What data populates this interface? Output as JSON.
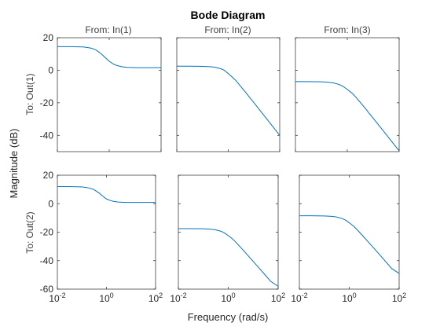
{
  "chart_data": {
    "type": "line",
    "title": "Bode Diagram",
    "xlabel": "Frequency (rad/s)",
    "ylabel": "Magnitude (dB)",
    "x_scale": "log",
    "xlim": [
      0.01,
      100
    ],
    "grid": false,
    "inputs": [
      "From: In(1)",
      "From: In(2)",
      "From: In(3)"
    ],
    "outputs": [
      "To: Out(1)",
      "To: Out(2)"
    ],
    "x_tick_labels": [
      {
        "base": "10",
        "exp": "-2"
      },
      {
        "base": "10",
        "exp": "0"
      },
      {
        "base": "10",
        "exp": "2"
      }
    ],
    "rows": [
      {
        "ylim": [
          -50,
          20
        ],
        "yticks": [
          20,
          0,
          -20,
          -40
        ],
        "panels": [
          {
            "x": [
              0.01,
              0.03,
              0.1,
              0.2,
              0.3,
              0.5,
              0.7,
              1,
              1.5,
              2,
              3,
              5,
              7,
              10,
              20,
              30,
              50,
              100
            ],
            "y": [
              14.5,
              14.5,
              14.3,
              13.6,
              12.6,
              10,
              7.8,
              5.5,
              3.7,
              2.9,
              2.2,
              1.8,
              1.7,
              1.6,
              1.6,
              1.6,
              1.6,
              1.6
            ]
          },
          {
            "x": [
              0.01,
              0.03,
              0.1,
              0.2,
              0.3,
              0.5,
              0.7,
              1,
              1.5,
              2,
              3,
              5,
              7,
              10,
              20,
              30,
              50,
              100
            ],
            "y": [
              2.5,
              2.5,
              2.4,
              2.2,
              1.9,
              1,
              0,
              -2,
              -4.5,
              -6.4,
              -9.8,
              -14,
              -17,
              -20,
              -26,
              -29.5,
              -34,
              -40
            ]
          },
          {
            "x": [
              0.01,
              0.03,
              0.1,
              0.2,
              0.3,
              0.5,
              0.7,
              1,
              1.5,
              2,
              3,
              5,
              7,
              10,
              20,
              30,
              50,
              100
            ],
            "y": [
              -7,
              -7,
              -7.1,
              -7.4,
              -7.8,
              -8.8,
              -10,
              -11.8,
              -14,
              -16,
              -19.3,
              -23.5,
              -26.5,
              -29.5,
              -35.5,
              -39,
              -43.5,
              -49.5
            ]
          }
        ]
      },
      {
        "ylim": [
          -60,
          20
        ],
        "yticks": [
          20,
          0,
          -20,
          -40,
          -60
        ],
        "panels": [
          {
            "x": [
              0.01,
              0.03,
              0.1,
              0.2,
              0.3,
              0.5,
              0.7,
              1,
              1.5,
              2,
              3,
              5,
              7,
              10,
              20,
              30,
              50,
              100
            ],
            "y": [
              12,
              12,
              11.8,
              11,
              10,
              7.5,
              5.3,
              3.3,
              2.1,
              1.6,
              1.2,
              1,
              0.9,
              0.9,
              0.9,
              0.9,
              0.9,
              0.9
            ]
          },
          {
            "x": [
              0.01,
              0.03,
              0.1,
              0.2,
              0.3,
              0.5,
              0.7,
              1,
              1.5,
              2,
              3,
              5,
              7,
              10,
              20,
              30,
              50,
              100
            ],
            "y": [
              -17.5,
              -17.5,
              -17.6,
              -17.9,
              -18.3,
              -19.3,
              -20.5,
              -22.4,
              -24.8,
              -27,
              -30.3,
              -34.6,
              -37.5,
              -40.5,
              -46.5,
              -50,
              -54.5,
              -58
            ]
          },
          {
            "x": [
              0.01,
              0.03,
              0.1,
              0.2,
              0.3,
              0.5,
              0.7,
              1,
              1.5,
              2,
              3,
              5,
              7,
              10,
              20,
              30,
              50,
              100
            ],
            "y": [
              -8.5,
              -8.5,
              -8.6,
              -8.9,
              -9.3,
              -10.3,
              -11.5,
              -13.4,
              -15.8,
              -18,
              -21.3,
              -25.6,
              -28.5,
              -31.5,
              -37.5,
              -41,
              -45.5,
              -49
            ]
          }
        ]
      }
    ]
  }
}
